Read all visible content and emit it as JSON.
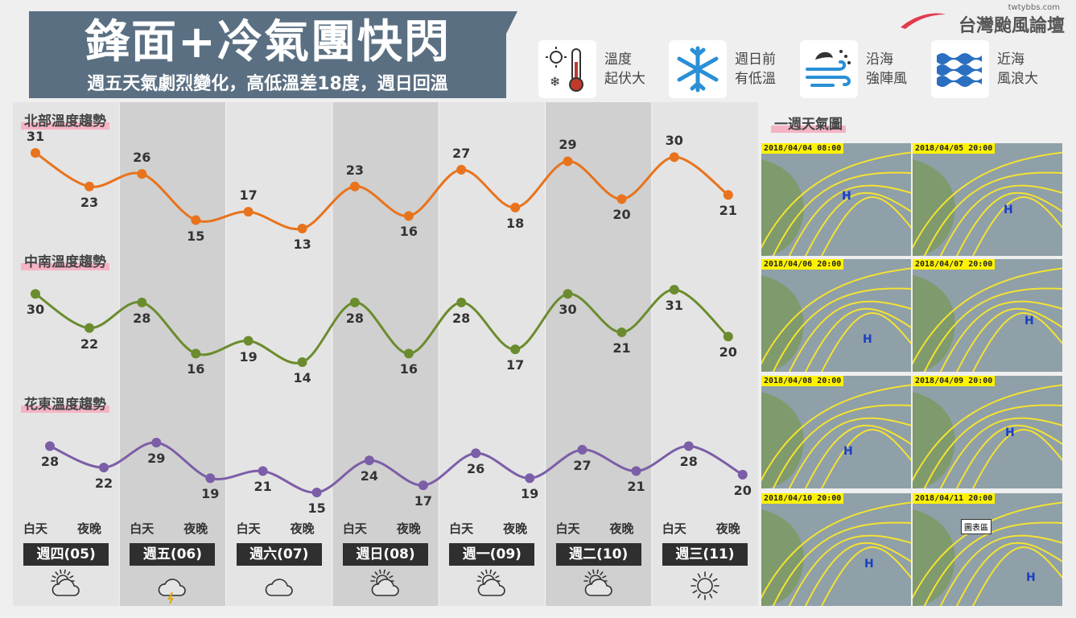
{
  "header": {
    "title": "鋒面+冷氣團快閃",
    "subtitle": "週五天氣劇烈變化，高低溫差18度，週日回溫",
    "brand_site": "twtybbs.com",
    "brand_name": "台灣颱風論壇"
  },
  "highlights": [
    {
      "icon": "thermometer-icon",
      "line1": "溫度",
      "line2": "起伏大"
    },
    {
      "icon": "snowflake-icon",
      "line1": "週日前",
      "line2": "有低溫"
    },
    {
      "icon": "wind-icon",
      "line1": "沿海",
      "line2": "強陣風"
    },
    {
      "icon": "waves-icon",
      "line1": "近海",
      "line2": "風浪大"
    }
  ],
  "maps": {
    "title": "一週天氣圖",
    "items": [
      {
        "date": "2018/04/04 08:00"
      },
      {
        "date": "2018/04/05 20:00"
      },
      {
        "date": "2018/04/06 20:00"
      },
      {
        "date": "2018/04/07 20:00"
      },
      {
        "date": "2018/04/08 20:00"
      },
      {
        "date": "2018/04/09 20:00"
      },
      {
        "date": "2018/04/10 20:00"
      },
      {
        "date": "2018/04/11 20:00"
      }
    ],
    "callout": "圖表區"
  },
  "chart_data": {
    "type": "line",
    "categories": [
      "白天",
      "夜晚",
      "白天",
      "夜晚",
      "白天",
      "夜晚",
      "白天",
      "夜晚",
      "白天",
      "夜晚",
      "白天",
      "夜晚",
      "白天",
      "夜晚"
    ],
    "days": [
      "週四(05)",
      "週五(06)",
      "週六(07)",
      "週日(08)",
      "週一(09)",
      "週二(10)",
      "週三(11)"
    ],
    "day_label": "白天",
    "night_label": "夜晚",
    "weather_icons": [
      "partly-cloudy-icon",
      "thunderstorm-icon",
      "cloud-icon",
      "partly-cloudy-icon",
      "partly-cloudy-icon",
      "partly-cloudy-icon",
      "sun-icon"
    ],
    "series": [
      {
        "name": "北部溫度趨勢",
        "color": "#e8731c",
        "values": [
          31,
          23,
          26,
          15,
          17,
          13,
          23,
          16,
          27,
          18,
          29,
          20,
          30,
          21
        ]
      },
      {
        "name": "中南溫度趨勢",
        "color": "#6b8c2e",
        "values": [
          30,
          22,
          28,
          16,
          19,
          14,
          28,
          16,
          28,
          17,
          30,
          21,
          31,
          20
        ]
      },
      {
        "name": "花東溫度趨勢",
        "color": "#7b5ea7",
        "values": [
          28,
          22,
          29,
          19,
          21,
          15,
          24,
          17,
          26,
          19,
          27,
          21,
          28,
          20
        ]
      }
    ]
  }
}
